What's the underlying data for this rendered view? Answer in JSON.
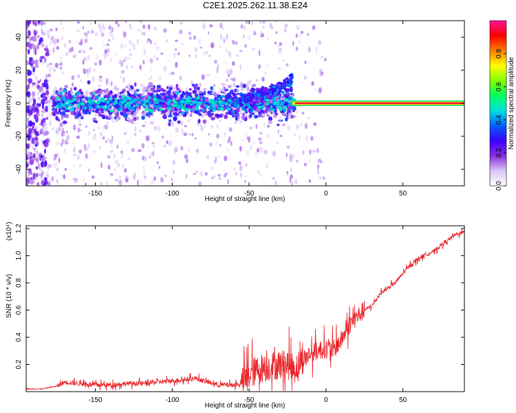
{
  "title": "C2E1.2025.262.11.38.E24",
  "colors": {
    "axis": "#000000",
    "snr_line": "#e8262b",
    "tick": "#000000"
  },
  "chart_data": [
    {
      "type": "heatmap",
      "name": "spectrogram",
      "xlabel": "Height of straight line (km)",
      "ylabel": "Frequency (Hz)",
      "xlim": [
        -195,
        90
      ],
      "ylim": [
        -50,
        50
      ],
      "x_ticks": [
        -150,
        -100,
        -50,
        0,
        50
      ],
      "x_tick_labels": [
        "-150",
        "-100",
        "-50",
        "0",
        "50"
      ],
      "y_ticks": [
        -40,
        -20,
        0,
        20,
        40
      ],
      "y_tick_labels": [
        "-40",
        "-20",
        "0",
        "20",
        "40"
      ],
      "colorbar": {
        "label": "Normalized spectral amplitude",
        "range": [
          0,
          1
        ],
        "ticks": [
          0.0,
          0.2,
          0.4,
          0.6,
          0.8
        ],
        "tick_labels": [
          "0.0",
          "0.2",
          "0.4",
          "0.6",
          "0.8"
        ],
        "colormap": [
          "#ffffff",
          "#d9c6f5",
          "#8a2be2",
          "#3b00ff",
          "#0060ff",
          "#00e0e0",
          "#00ff60",
          "#80ff00",
          "#ffff00",
          "#ff8000",
          "#ff0000",
          "#ff1493"
        ]
      },
      "features": {
        "scatter_band": {
          "x_range": [
            -195,
            -20
          ],
          "center_freq": 0,
          "spread_hz": 10,
          "amplitude": [
            0.05,
            0.35
          ]
        },
        "drifting_branch": {
          "x_start": -60,
          "x_end": -22,
          "freq_start": 2,
          "freq_end": 14
        },
        "carrier_line": {
          "x_range": [
            -20,
            90
          ],
          "freq": 0,
          "amplitude": 0.95
        }
      }
    },
    {
      "type": "line",
      "name": "snr",
      "xlabel": "Height of straight line (km)",
      "ylabel": "SNR (10 * v/v)",
      "multiplier": "(x10⁴)",
      "xlim": [
        -195,
        90
      ],
      "ylim": [
        0,
        1.22
      ],
      "x_ticks": [
        -150,
        -100,
        -50,
        0,
        50
      ],
      "x_tick_labels": [
        "-150",
        "-100",
        "-50",
        "0",
        "50"
      ],
      "y_ticks": [
        0.2,
        0.4,
        0.6,
        0.8,
        1.0,
        1.2
      ],
      "y_tick_labels": [
        "0.2",
        "0.4",
        "0.6",
        "0.8",
        "1.0",
        "1.2"
      ],
      "series": [
        {
          "name": "SNR",
          "x": [
            -195,
            -185,
            -175,
            -170,
            -160,
            -150,
            -140,
            -130,
            -120,
            -110,
            -100,
            -90,
            -85,
            -80,
            -70,
            -60,
            -55,
            -50,
            -45,
            -40,
            -35,
            -30,
            -25,
            -20,
            -15,
            -10,
            -5,
            0,
            5,
            10,
            15,
            20,
            25,
            30,
            35,
            40,
            45,
            50,
            55,
            60,
            65,
            70,
            75,
            80,
            85,
            90
          ],
          "y": [
            0.02,
            0.02,
            0.04,
            0.07,
            0.06,
            0.05,
            0.05,
            0.06,
            0.06,
            0.07,
            0.08,
            0.09,
            0.1,
            0.08,
            0.05,
            0.05,
            0.06,
            0.12,
            0.16,
            0.18,
            0.19,
            0.2,
            0.2,
            0.17,
            0.24,
            0.28,
            0.3,
            0.32,
            0.31,
            0.38,
            0.49,
            0.55,
            0.6,
            0.63,
            0.72,
            0.76,
            0.8,
            0.87,
            0.93,
            0.98,
            1.01,
            1.03,
            1.08,
            1.12,
            1.16,
            1.17
          ]
        }
      ]
    }
  ]
}
